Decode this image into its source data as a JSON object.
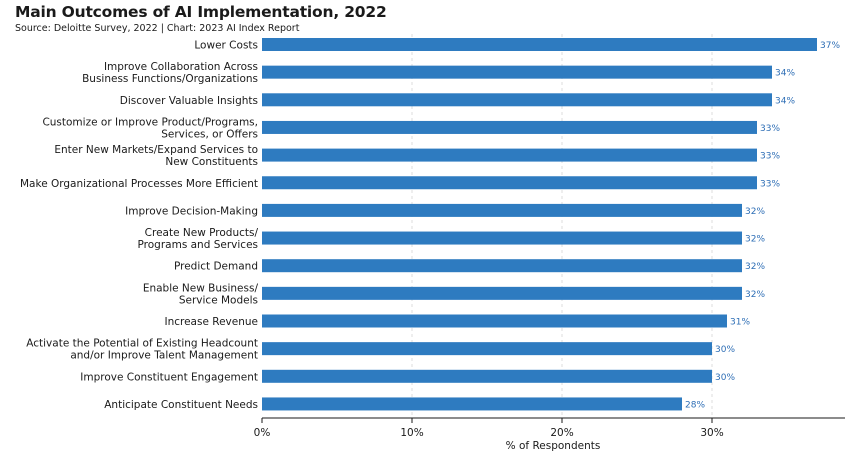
{
  "header": {
    "title": "Main Outcomes of AI Implementation, 2022",
    "subtitle": "Source: Deloitte Survey, 2022 | Chart: 2023 AI Index Report"
  },
  "colors": {
    "bar": "#2e7bc0",
    "value_label": "#2f6fb6",
    "gridline": "#dcdcdc"
  },
  "chart_data": {
    "type": "bar",
    "orientation": "horizontal",
    "title": "Main Outcomes of AI Implementation, 2022",
    "xlabel": "% of Respondents",
    "ylabel": "",
    "xlim": [
      0,
      38
    ],
    "x_ticks": [
      0,
      10,
      20,
      30
    ],
    "x_tick_labels": [
      "0%",
      "10%",
      "20%",
      "30%"
    ],
    "grid": "vertical dashed",
    "categories": [
      [
        "Lower Costs"
      ],
      [
        "Improve Collaboration Across",
        "Business Functions/Organizations"
      ],
      [
        "Discover Valuable Insights"
      ],
      [
        "Customize or Improve Product/Programs,",
        "Services, or Offers"
      ],
      [
        "Enter New Markets/Expand Services to",
        "New Constituents"
      ],
      [
        "Make Organizational Processes More Efficient"
      ],
      [
        "Improve Decision-Making"
      ],
      [
        "Create New Products/",
        "Programs and Services"
      ],
      [
        "Predict Demand"
      ],
      [
        "Enable New Business/",
        "Service Models"
      ],
      [
        "Increase Revenue"
      ],
      [
        "Activate the Potential of Existing Headcount",
        "and/or Improve Talent Management"
      ],
      [
        "Improve Constituent Engagement"
      ],
      [
        "Anticipate Constituent Needs"
      ]
    ],
    "values": [
      37,
      34,
      34,
      33,
      33,
      33,
      32,
      32,
      32,
      32,
      31,
      30,
      30,
      28
    ],
    "value_labels": [
      "37%",
      "34%",
      "34%",
      "33%",
      "33%",
      "33%",
      "32%",
      "32%",
      "32%",
      "32%",
      "31%",
      "30%",
      "30%",
      "28%"
    ]
  }
}
